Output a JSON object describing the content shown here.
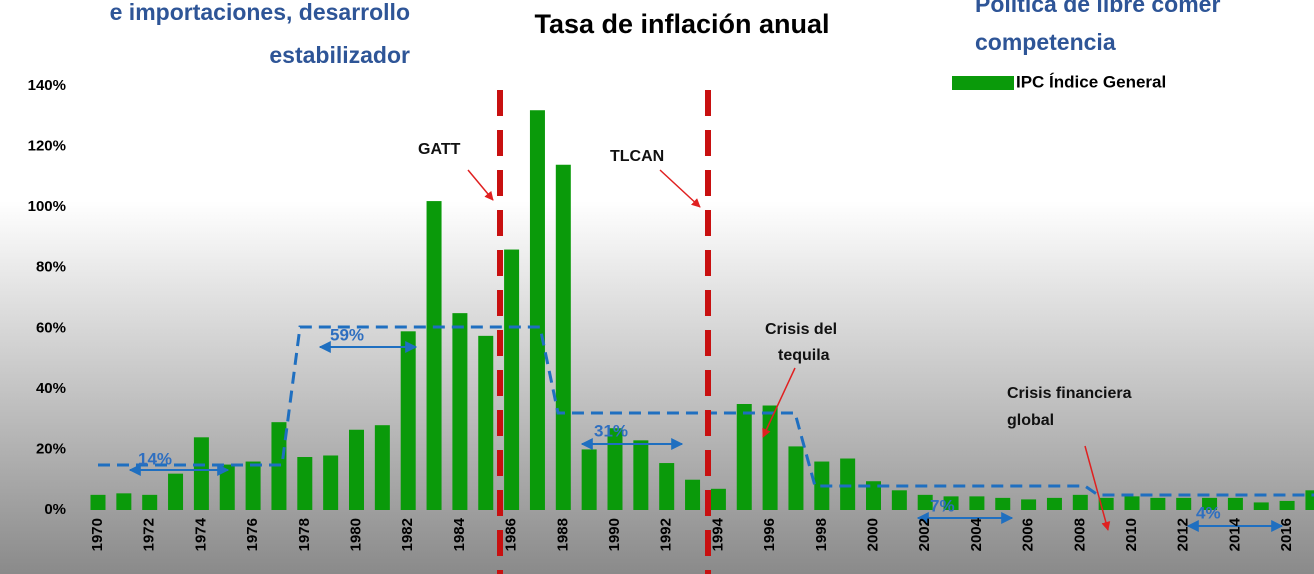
{
  "chart_data": {
    "type": "bar",
    "title": "Tasa de inflación anual",
    "left_title": [
      "e importaciones, desarrollo",
      "estabilizador"
    ],
    "right_title": [
      "Política de libre comer",
      "competencia"
    ],
    "categories": [
      "1970",
      null,
      "1972",
      null,
      "1974",
      null,
      "1976",
      null,
      "1978",
      null,
      "1980",
      null,
      "1982",
      null,
      "1984",
      null,
      "1986",
      null,
      "1988",
      null,
      "1990",
      null,
      "1992",
      null,
      "1994",
      null,
      "1996",
      null,
      "1998",
      null,
      "2000",
      null,
      "2002",
      null,
      "2004",
      null,
      "2006",
      null,
      "2008",
      null,
      "2010",
      null,
      "2012",
      null,
      "2014",
      null,
      "2016",
      null
    ],
    "series": [
      {
        "name": "IPC  Índice General",
        "color": "#0a9a0a",
        "values": [
          5,
          5.5,
          5,
          12,
          24,
          15,
          16,
          29,
          17.5,
          18,
          26.5,
          28,
          59,
          102,
          65,
          57.5,
          86,
          132,
          114,
          20,
          27,
          23,
          15.5,
          10,
          7,
          35,
          34.5,
          21,
          16,
          17,
          9.5,
          6.5,
          5,
          4.5,
          4.5,
          4,
          3.5,
          4,
          5,
          4,
          4.5,
          4,
          4,
          4,
          4,
          2.5,
          3,
          6.5
        ]
      }
    ],
    "ylim": [
      0,
      140
    ],
    "yticks": [
      {
        "value": 0,
        "label": "0%"
      },
      {
        "value": 20,
        "label": "20%"
      },
      {
        "value": 40,
        "label": "40%"
      },
      {
        "value": 60,
        "label": "60%"
      },
      {
        "value": 80,
        "label": "80%"
      },
      {
        "value": 100,
        "label": "100%"
      },
      {
        "value": 120,
        "label": "120%"
      },
      {
        "value": 140,
        "label": "140%"
      }
    ],
    "annotations": [
      "GATT",
      "TLCAN",
      "Crisis del",
      "tequila",
      "Crisis financiera",
      "global",
      "14%",
      "59%",
      "31%",
      "7%",
      "4%"
    ]
  }
}
